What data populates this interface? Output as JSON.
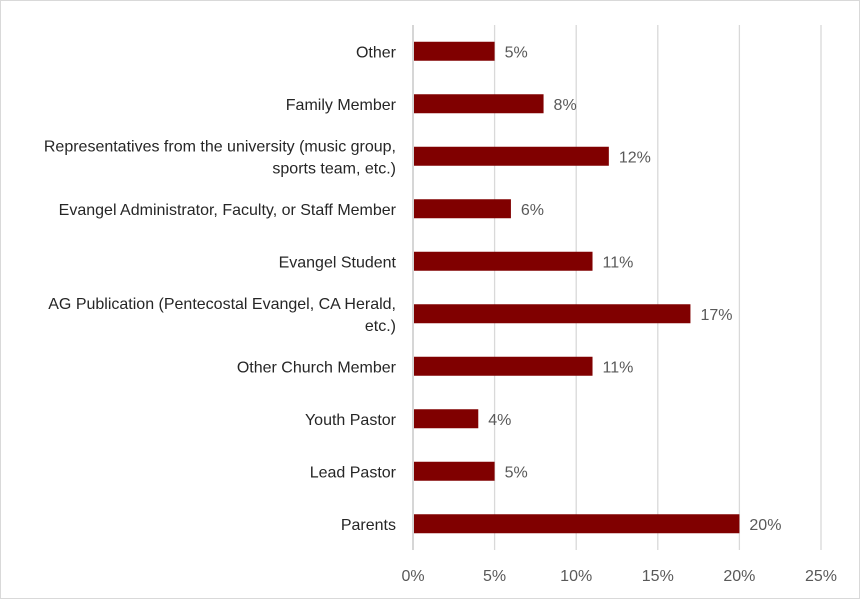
{
  "chart_data": {
    "type": "bar",
    "orientation": "horizontal",
    "categories": [
      "Other",
      "Family Member",
      "Representatives from the university (music group, sports team, etc.)",
      "Evangel Administrator, Faculty, or Staff Member",
      "Evangel Student",
      "AG Publication (Pentecostal Evangel, CA Herald, etc.)",
      "Other Church Member",
      "Youth Pastor",
      "Lead Pastor",
      "Parents"
    ],
    "category_label_lines": [
      [
        "Other"
      ],
      [
        "Family Member"
      ],
      [
        "Representatives from the university (music group,",
        "sports team, etc.)"
      ],
      [
        "Evangel Administrator, Faculty, or Staff Member"
      ],
      [
        "Evangel Student"
      ],
      [
        "AG Publication (Pentecostal Evangel, CA Herald,",
        "etc.)"
      ],
      [
        "Other Church Member"
      ],
      [
        "Youth Pastor"
      ],
      [
        "Lead Pastor"
      ],
      [
        "Parents"
      ]
    ],
    "values": [
      5,
      8,
      12,
      6,
      11,
      17,
      11,
      4,
      5,
      20
    ],
    "value_labels": [
      "5%",
      "8%",
      "12%",
      "6%",
      "11%",
      "17%",
      "11%",
      "4%",
      "5%",
      "20%"
    ],
    "xlim": [
      0,
      25
    ],
    "xticks": [
      0,
      5,
      10,
      15,
      20,
      25
    ],
    "xtick_labels": [
      "0%",
      "5%",
      "10%",
      "15%",
      "20%",
      "25%"
    ],
    "title": "",
    "xlabel": "",
    "ylabel": "",
    "grid": "vertical",
    "legend": "none",
    "bar_color": "#800000",
    "grid_color": "#d9d9d9",
    "text_color": "#262626",
    "tick_label_color": "#595959"
  }
}
